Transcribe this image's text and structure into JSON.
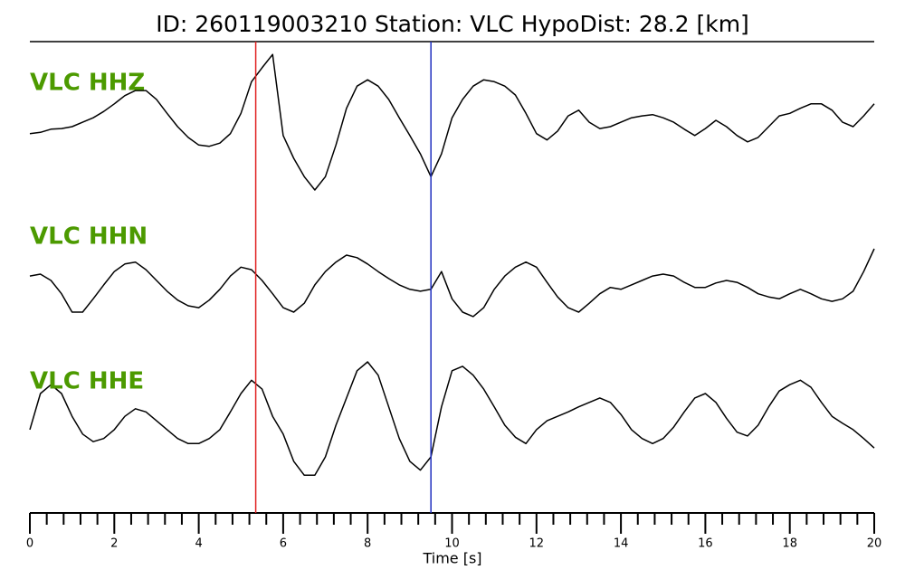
{
  "chart_data": {
    "type": "line",
    "title": "ID: 260119003210   Station: VLC   HypoDist:    28.2 [km]",
    "x_label": "Time [s]",
    "xlim": [
      0,
      20
    ],
    "xticks": [
      0,
      2,
      4,
      6,
      8,
      10,
      12,
      14,
      16,
      18,
      20
    ],
    "minor_xticks": [
      0.4,
      0.8,
      1.2,
      1.6,
      2.4,
      2.8,
      3.2,
      3.6,
      4.4,
      4.8,
      5.2,
      5.6,
      6.4,
      6.8,
      7.2,
      7.6,
      8.4,
      8.8,
      9.2,
      9.6,
      10.4,
      10.8,
      11.2,
      11.6,
      12.4,
      12.8,
      13.2,
      13.6,
      14.4,
      14.8,
      15.2,
      15.6,
      16.4,
      16.8,
      17.2,
      17.6,
      18.4,
      18.8,
      19.2,
      19.6
    ],
    "ylim": [
      -1.2,
      1.2
    ],
    "label_color": "#4c9a00",
    "picks": [
      {
        "x": 5.35,
        "color": "#e02020"
      },
      {
        "x": 9.5,
        "color": "#2030c0"
      }
    ],
    "x": [
      0,
      0.25,
      0.5,
      0.75,
      1,
      1.25,
      1.5,
      1.75,
      2,
      2.25,
      2.5,
      2.75,
      3,
      3.25,
      3.5,
      3.75,
      4,
      4.25,
      4.5,
      4.75,
      5,
      5.25,
      5.5,
      5.75,
      6,
      6.25,
      6.5,
      6.75,
      7,
      7.25,
      7.5,
      7.75,
      8,
      8.25,
      8.5,
      8.75,
      9,
      9.25,
      9.5,
      9.75,
      10,
      10.25,
      10.5,
      10.75,
      11,
      11.25,
      11.5,
      11.75,
      12,
      12.25,
      12.5,
      12.75,
      13,
      13.25,
      13.5,
      13.75,
      14,
      14.25,
      14.5,
      14.75,
      15,
      15.25,
      15.5,
      15.75,
      16,
      16.25,
      16.5,
      16.75,
      17,
      17.25,
      17.5,
      17.75,
      18,
      18.25,
      18.5,
      18.75,
      19,
      19.25,
      19.5,
      19.75,
      20
    ],
    "series": [
      {
        "name": "VLC HHZ",
        "color": "#000000",
        "values": [
          -0.11,
          -0.09,
          -0.04,
          -0.03,
          0,
          0.07,
          0.14,
          0.24,
          0.36,
          0.49,
          0.57,
          0.57,
          0.43,
          0.21,
          0,
          -0.17,
          -0.29,
          -0.31,
          -0.26,
          -0.11,
          0.21,
          0.71,
          0.93,
          1.14,
          -0.14,
          -0.5,
          -0.79,
          -1,
          -0.79,
          -0.29,
          0.29,
          0.64,
          0.74,
          0.64,
          0.43,
          0.14,
          -0.14,
          -0.43,
          -0.79,
          -0.43,
          0.14,
          0.43,
          0.64,
          0.74,
          0.71,
          0.64,
          0.5,
          0.21,
          -0.11,
          -0.21,
          -0.07,
          0.17,
          0.26,
          0.07,
          -0.03,
          0,
          0.07,
          0.14,
          0.17,
          0.19,
          0.14,
          0.07,
          -0.04,
          -0.14,
          -0.03,
          0.1,
          0,
          -0.14,
          -0.24,
          -0.17,
          0,
          0.17,
          0.21,
          0.29,
          0.36,
          0.36,
          0.26,
          0.07,
          0,
          0.17,
          0.36
        ]
      },
      {
        "name": "VLC HHN",
        "color": "#000000",
        "values": [
          0.07,
          0.1,
          0,
          -0.21,
          -0.5,
          -0.5,
          -0.29,
          -0.07,
          0.14,
          0.26,
          0.29,
          0.17,
          0,
          -0.17,
          -0.31,
          -0.4,
          -0.43,
          -0.31,
          -0.14,
          0.07,
          0.21,
          0.17,
          0,
          -0.21,
          -0.43,
          -0.5,
          -0.36,
          -0.07,
          0.14,
          0.29,
          0.4,
          0.36,
          0.26,
          0.14,
          0.03,
          -0.07,
          -0.14,
          -0.17,
          -0.14,
          0.14,
          -0.29,
          -0.5,
          -0.57,
          -0.43,
          -0.14,
          0.07,
          0.21,
          0.29,
          0.21,
          -0.03,
          -0.26,
          -0.43,
          -0.5,
          -0.36,
          -0.21,
          -0.11,
          -0.14,
          -0.07,
          0,
          0.07,
          0.1,
          0.07,
          -0.03,
          -0.11,
          -0.11,
          -0.04,
          0,
          -0.03,
          -0.11,
          -0.21,
          -0.26,
          -0.29,
          -0.21,
          -0.14,
          -0.21,
          -0.29,
          -0.33,
          -0.29,
          -0.17,
          0.14,
          0.5
        ]
      },
      {
        "name": "VLC HHE",
        "color": "#000000",
        "values": [
          -0.07,
          0.5,
          0.64,
          0.5,
          0.14,
          -0.14,
          -0.26,
          -0.21,
          -0.07,
          0.14,
          0.26,
          0.21,
          0.07,
          -0.07,
          -0.21,
          -0.29,
          -0.29,
          -0.21,
          -0.07,
          0.21,
          0.5,
          0.71,
          0.57,
          0.14,
          -0.14,
          -0.57,
          -0.79,
          -0.79,
          -0.5,
          0,
          0.43,
          0.86,
          1,
          0.79,
          0.29,
          -0.21,
          -0.57,
          -0.71,
          -0.5,
          0.29,
          0.86,
          0.93,
          0.79,
          0.57,
          0.29,
          0,
          -0.19,
          -0.29,
          -0.07,
          0.07,
          0.14,
          0.21,
          0.29,
          0.36,
          0.43,
          0.36,
          0.17,
          -0.07,
          -0.21,
          -0.29,
          -0.21,
          -0.03,
          0.21,
          0.43,
          0.5,
          0.36,
          0.11,
          -0.11,
          -0.17,
          0,
          0.29,
          0.54,
          0.64,
          0.71,
          0.6,
          0.36,
          0.14,
          0.03,
          -0.07,
          -0.21,
          -0.36
        ]
      }
    ]
  }
}
